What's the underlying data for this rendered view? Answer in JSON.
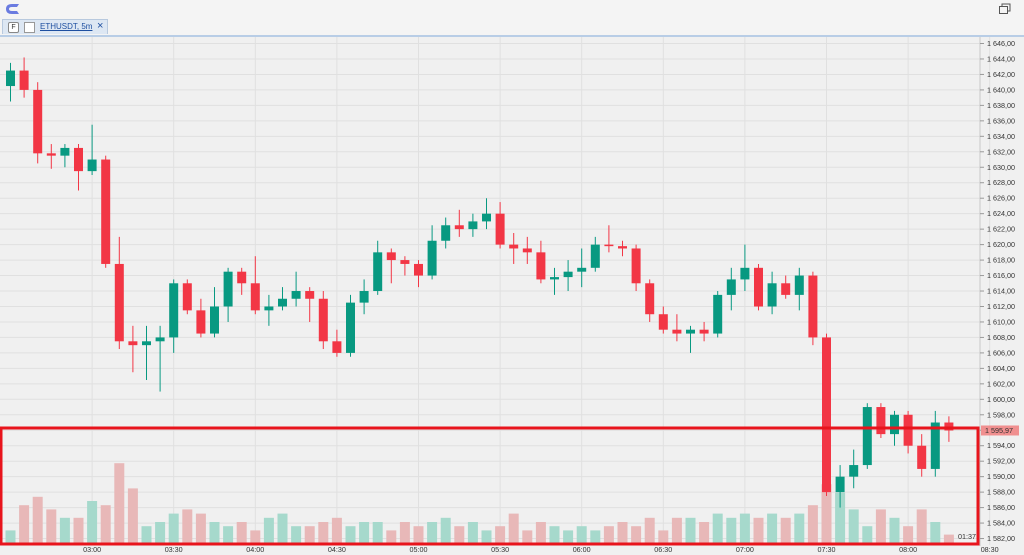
{
  "window": {
    "tab_icon_letter": "F",
    "tab_label": "ETHUSDT, 5m",
    "tab_close": "×"
  },
  "colors": {
    "up": "#089981",
    "down": "#f23645",
    "up_vol": "#a6d9cc",
    "down_vol": "#e8b8b8",
    "grid": "#e0e0e0",
    "highlight": "#e8141c",
    "price_label_bg": "#f08f8f"
  },
  "chart_data": {
    "type": "candlestick",
    "symbol": "ETHUSDT",
    "timeframe": "5m",
    "ylim": [
      1581,
      1647
    ],
    "y_ticks": [
      "1 646,00",
      "1 644,00",
      "1 642,00",
      "1 640,00",
      "1 638,00",
      "1 636,00",
      "1 634,00",
      "1 632,00",
      "1 630,00",
      "1 628,00",
      "1 626,00",
      "1 624,00",
      "1 622,00",
      "1 620,00",
      "1 618,00",
      "1 616,00",
      "1 614,00",
      "1 612,00",
      "1 610,00",
      "1 608,00",
      "1 606,00",
      "1 604,00",
      "1 602,00",
      "1 600,00",
      "1 598,00",
      "1 596,00",
      "1 594,00",
      "1 592,00",
      "1 590,00",
      "1 588,00",
      "1 586,00",
      "1 584,00",
      "1 582,00"
    ],
    "x_ticks": [
      "03:00",
      "03:30",
      "04:00",
      "04:30",
      "05:00",
      "05:30",
      "06:00",
      "06:30",
      "07:00",
      "07:30",
      "08:00",
      "08:30"
    ],
    "x_tick_index": [
      6,
      12,
      18,
      24,
      30,
      36,
      42,
      48,
      54,
      60,
      66,
      72
    ],
    "last_price": "1 595,97",
    "countdown": "01:37",
    "candles": [
      [
        1640.5,
        1643.5,
        1638.5,
        1642.5
      ],
      [
        1642.5,
        1644.2,
        1639.0,
        1640.0
      ],
      [
        1640.0,
        1641.0,
        1630.5,
        1631.8
      ],
      [
        1631.8,
        1633.0,
        1629.8,
        1631.5
      ],
      [
        1631.5,
        1633.0,
        1630.0,
        1632.5
      ],
      [
        1632.5,
        1633.0,
        1627.0,
        1629.5
      ],
      [
        1629.5,
        1635.5,
        1629.0,
        1631.0
      ],
      [
        1631.0,
        1631.5,
        1617.0,
        1617.5
      ],
      [
        1617.5,
        1621.0,
        1606.5,
        1607.5
      ],
      [
        1607.5,
        1609.5,
        1603.5,
        1607.0
      ],
      [
        1607.0,
        1609.5,
        1602.5,
        1607.5
      ],
      [
        1607.5,
        1609.5,
        1601.0,
        1608.0
      ],
      [
        1608.0,
        1615.5,
        1606.0,
        1615.0
      ],
      [
        1615.0,
        1615.5,
        1611.0,
        1611.5
      ],
      [
        1611.5,
        1613.0,
        1608.0,
        1608.5
      ],
      [
        1608.5,
        1614.5,
        1608.0,
        1612.0
      ],
      [
        1612.0,
        1617.0,
        1610.0,
        1616.5
      ],
      [
        1616.5,
        1617.0,
        1613.5,
        1615.0
      ],
      [
        1615.0,
        1618.5,
        1611.0,
        1611.5
      ],
      [
        1611.5,
        1613.5,
        1609.5,
        1612.0
      ],
      [
        1612.0,
        1614.5,
        1611.5,
        1613.0
      ],
      [
        1613.0,
        1616.5,
        1612.0,
        1614.0
      ],
      [
        1614.0,
        1614.5,
        1610.0,
        1613.0
      ],
      [
        1613.0,
        1614.0,
        1606.5,
        1607.5
      ],
      [
        1607.5,
        1609.0,
        1605.5,
        1606.0
      ],
      [
        1606.0,
        1613.5,
        1605.5,
        1612.5
      ],
      [
        1612.5,
        1615.5,
        1611.0,
        1614.0
      ],
      [
        1614.0,
        1620.5,
        1613.5,
        1619.0
      ],
      [
        1619.0,
        1619.5,
        1615.0,
        1618.0
      ],
      [
        1618.0,
        1618.5,
        1616.0,
        1617.5
      ],
      [
        1617.5,
        1618.0,
        1614.5,
        1616.0
      ],
      [
        1616.0,
        1622.5,
        1615.5,
        1620.5
      ],
      [
        1620.5,
        1623.5,
        1619.5,
        1622.5
      ],
      [
        1622.5,
        1624.5,
        1621.0,
        1622.0
      ],
      [
        1622.0,
        1624.0,
        1621.0,
        1623.0
      ],
      [
        1623.0,
        1626.0,
        1622.0,
        1624.0
      ],
      [
        1624.0,
        1625.5,
        1619.5,
        1620.0
      ],
      [
        1620.0,
        1621.5,
        1617.5,
        1619.5
      ],
      [
        1619.5,
        1621.0,
        1617.5,
        1619.0
      ],
      [
        1619.0,
        1620.5,
        1615.0,
        1615.5
      ],
      [
        1615.5,
        1617.0,
        1613.5,
        1615.8
      ],
      [
        1615.8,
        1618.0,
        1614.0,
        1616.5
      ],
      [
        1616.5,
        1619.5,
        1614.5,
        1617.0
      ],
      [
        1617.0,
        1621.0,
        1616.5,
        1620.0
      ],
      [
        1620.0,
        1622.5,
        1619.0,
        1619.8
      ],
      [
        1619.8,
        1620.5,
        1618.5,
        1619.5
      ],
      [
        1619.5,
        1620.0,
        1614.0,
        1615.0
      ],
      [
        1615.0,
        1615.5,
        1610.0,
        1611.0
      ],
      [
        1611.0,
        1612.0,
        1608.5,
        1609.0
      ],
      [
        1609.0,
        1611.0,
        1607.5,
        1608.5
      ],
      [
        1608.5,
        1609.5,
        1606.0,
        1609.0
      ],
      [
        1609.0,
        1610.0,
        1607.5,
        1608.5
      ],
      [
        1608.5,
        1614.0,
        1608.0,
        1613.5
      ],
      [
        1613.5,
        1617.0,
        1611.5,
        1615.5
      ],
      [
        1615.5,
        1620.0,
        1614.0,
        1617.0
      ],
      [
        1617.0,
        1617.5,
        1611.5,
        1612.0
      ],
      [
        1612.0,
        1616.5,
        1611.0,
        1615.0
      ],
      [
        1615.0,
        1616.0,
        1613.0,
        1613.5
      ],
      [
        1613.5,
        1617.0,
        1611.5,
        1616.0
      ],
      [
        1616.0,
        1616.5,
        1607.0,
        1608.0
      ],
      [
        1608.0,
        1608.5,
        1587.5,
        1588.0
      ],
      [
        1588.0,
        1591.5,
        1586.0,
        1590.0
      ],
      [
        1590.0,
        1593.5,
        1588.5,
        1591.5
      ],
      [
        1591.5,
        1599.5,
        1591.0,
        1599.0
      ],
      [
        1599.0,
        1599.5,
        1595.0,
        1595.5
      ],
      [
        1595.5,
        1598.5,
        1594.0,
        1598.0
      ],
      [
        1598.0,
        1598.5,
        1593.0,
        1594.0
      ],
      [
        1594.0,
        1595.5,
        1590.0,
        1591.0
      ],
      [
        1591.0,
        1598.5,
        1590.0,
        1597.0
      ],
      [
        1597.0,
        1597.8,
        1594.5,
        1595.97
      ]
    ],
    "volumes": [
      0.3,
      0.9,
      1.1,
      0.8,
      0.6,
      0.6,
      1.0,
      0.9,
      1.9,
      1.3,
      0.4,
      0.5,
      0.7,
      0.8,
      0.7,
      0.5,
      0.4,
      0.5,
      0.3,
      0.6,
      0.7,
      0.4,
      0.4,
      0.5,
      0.6,
      0.4,
      0.5,
      0.5,
      0.3,
      0.5,
      0.4,
      0.5,
      0.6,
      0.4,
      0.5,
      0.3,
      0.4,
      0.7,
      0.3,
      0.5,
      0.4,
      0.3,
      0.4,
      0.3,
      0.4,
      0.5,
      0.4,
      0.6,
      0.3,
      0.6,
      0.6,
      0.5,
      0.7,
      0.6,
      0.7,
      0.6,
      0.7,
      0.6,
      0.7,
      0.9,
      1.4,
      1.2,
      0.8,
      0.4,
      0.8,
      0.6,
      0.4,
      0.8,
      0.5,
      0.2
    ]
  }
}
